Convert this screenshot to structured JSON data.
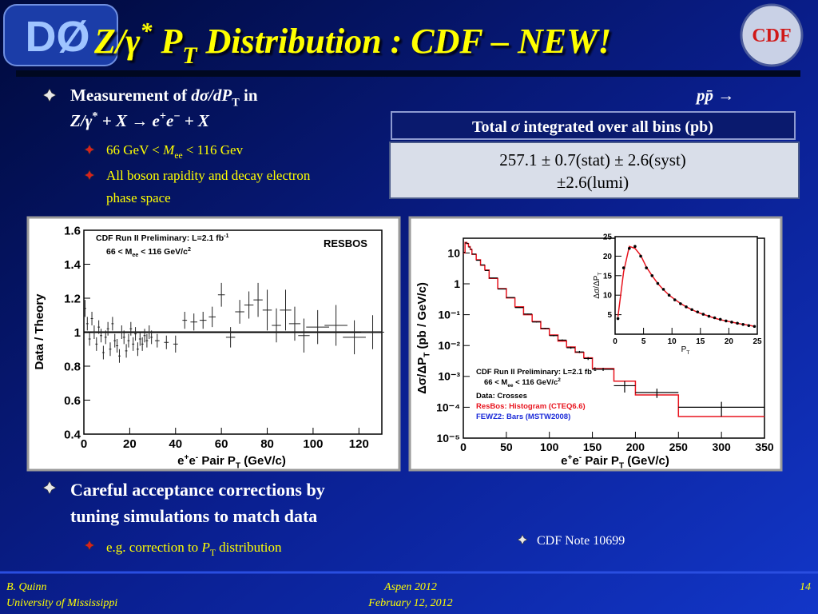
{
  "logos": {
    "left": "DØ",
    "right": "CDF"
  },
  "title": [
    {
      "t": "Z/γ"
    },
    {
      "sup": "*"
    },
    {
      "t": " P"
    },
    {
      "sub": "T"
    },
    {
      "t": " Distribution : CDF – NEW!"
    }
  ],
  "bullets": {
    "main1": {
      "line1": [
        {
          "t": "Measurement of  "
        },
        {
          "i": "dσ/dP"
        },
        {
          "sub": "T"
        },
        {
          "t": " in"
        }
      ],
      "line1_right": [
        {
          "i": "pp̄ →"
        }
      ],
      "line2": [
        {
          "i": "Z/γ"
        },
        {
          "sup": "*"
        },
        {
          "i": " + X → e"
        },
        {
          "sup": "+"
        },
        {
          "i": "e"
        },
        {
          "sup": "−"
        },
        {
          "i": " + X"
        }
      ],
      "sub1": [
        {
          "t": "66 GeV < "
        },
        {
          "i": "M"
        },
        {
          "sub": "ee"
        },
        {
          "t": " < 116 Gev"
        }
      ],
      "sub2": [
        "All boson rapidity and decay electron",
        "phase space"
      ]
    },
    "main2": {
      "lines": [
        "Careful acceptance corrections by",
        "tuning simulations to match data"
      ],
      "sub1": [
        {
          "t": "e.g. correction to "
        },
        {
          "i": "P"
        },
        {
          "sub": "T"
        },
        {
          "t": " distribution"
        }
      ]
    },
    "note": "CDF Note 10699"
  },
  "result_box": {
    "header": [
      {
        "t": "Total "
      },
      {
        "i": "σ"
      },
      {
        "t": " integrated over all bins (pb)"
      }
    ],
    "lines": [
      "257.1 ± 0.7(stat) ± 2.6(syst)",
      "±2.6(lumi)"
    ]
  },
  "left_plot": {
    "type": "scatter",
    "legend": [
      [
        {
          "t": "CDF Run II Preliminary: L=2.1 fb"
        },
        {
          "sup": "-1"
        }
      ],
      [
        {
          "t": "66 < M"
        },
        {
          "sub": "ee"
        },
        {
          "t": " < 116 GeV/c"
        },
        {
          "sup": "2"
        }
      ]
    ],
    "model": "RESBOS",
    "ylabel": [
      {
        "t": "Data / Theory"
      }
    ],
    "xlabel": [
      {
        "t": "e"
      },
      {
        "sup": "+"
      },
      {
        "t": "e"
      },
      {
        "sup": "-"
      },
      {
        "t": " Pair P"
      },
      {
        "sub": "T"
      },
      {
        "t": " (GeV/c)"
      }
    ],
    "xlim": [
      0,
      130
    ],
    "xticks": [
      0,
      20,
      40,
      60,
      80,
      100,
      120
    ],
    "ylim": [
      0.4,
      1.6
    ],
    "yticks": [
      0.4,
      0.6,
      0.8,
      1,
      1.2,
      1.4,
      1.6
    ],
    "reference_line": 1,
    "x": [
      0.5,
      1.5,
      2.5,
      3.5,
      4.5,
      5.5,
      6.5,
      7.5,
      8.5,
      9.5,
      10.5,
      11.5,
      12.5,
      13.5,
      14.5,
      15.5,
      16.5,
      17.5,
      18.5,
      19.5,
      20.5,
      21.5,
      22.5,
      23.5,
      24.5,
      25.5,
      26.5,
      27.5,
      28.5,
      29.5,
      32,
      36,
      40,
      44,
      48,
      52,
      56,
      60,
      64,
      68,
      72,
      76,
      80,
      84,
      88,
      92,
      96,
      102,
      110,
      118,
      126
    ],
    "y": [
      1.14,
      1.05,
      0.96,
      1.08,
      1.0,
      0.93,
      1.03,
      0.98,
      0.88,
      0.97,
      1.02,
      0.9,
      1.05,
      0.95,
      0.92,
      0.86,
      1.0,
      0.97,
      0.89,
      0.95,
      1.02,
      0.93,
      0.99,
      0.9,
      0.96,
      0.93,
      0.98,
      0.95,
      1.0,
      0.97,
      0.95,
      0.94,
      0.93,
      1.07,
      1.06,
      1.07,
      1.09,
      1.22,
      0.97,
      1.12,
      1.16,
      1.19,
      1.13,
      1.04,
      1.13,
      1.05,
      0.98,
      1.03,
      1.04,
      0.97,
      1.0
    ],
    "xerr": [
      0.5,
      0.5,
      0.5,
      0.5,
      0.5,
      0.5,
      0.5,
      0.5,
      0.5,
      0.5,
      0.5,
      0.5,
      0.5,
      0.5,
      0.5,
      0.5,
      0.5,
      0.5,
      0.5,
      0.5,
      0.5,
      0.5,
      0.5,
      0.5,
      0.5,
      0.5,
      0.5,
      0.5,
      0.5,
      0.5,
      1,
      1,
      1,
      1,
      1.5,
      1.5,
      1.5,
      1.5,
      2,
      2,
      2,
      2,
      2,
      2,
      2.5,
      2.5,
      2.5,
      5,
      5,
      5,
      5
    ],
    "yerr": [
      0.05,
      0.04,
      0.04,
      0.04,
      0.04,
      0.04,
      0.04,
      0.04,
      0.04,
      0.04,
      0.04,
      0.04,
      0.04,
      0.04,
      0.04,
      0.04,
      0.04,
      0.04,
      0.04,
      0.04,
      0.04,
      0.04,
      0.04,
      0.04,
      0.04,
      0.04,
      0.04,
      0.04,
      0.04,
      0.04,
      0.04,
      0.04,
      0.05,
      0.05,
      0.05,
      0.05,
      0.06,
      0.07,
      0.06,
      0.07,
      0.08,
      0.1,
      0.12,
      0.1,
      0.12,
      0.1,
      0.1,
      0.1,
      0.12,
      0.1,
      0.1
    ]
  },
  "right_plot": {
    "type": "histogram",
    "legend": [
      [
        {
          "t": "CDF Run II Preliminary: L=2.1 fb"
        },
        {
          "sup": "-1"
        }
      ],
      [
        {
          "t": "66 < M"
        },
        {
          "sub": "ee"
        },
        {
          "t": " < 116 GeV/c"
        },
        {
          "sup": "2"
        }
      ]
    ],
    "ylabel": [
      {
        "t": "Δσ/ΔP"
      },
      {
        "sub": "T"
      },
      {
        "t": "  (pb / GeV/c)"
      }
    ],
    "xlabel": [
      {
        "t": "e"
      },
      {
        "sup": "+"
      },
      {
        "t": "e"
      },
      {
        "sup": "-"
      },
      {
        "t": " Pair P"
      },
      {
        "sub": "T"
      },
      {
        "t": " (GeV/c)"
      }
    ],
    "xlim": [
      0,
      350
    ],
    "xticks": [
      0,
      50,
      100,
      150,
      200,
      250,
      300,
      350
    ],
    "log_y": true,
    "ylim": [
      1e-05,
      30
    ],
    "yticks": [
      {
        "value": 1e-05,
        "label": "10⁻⁵"
      },
      {
        "value": 0.0001,
        "label": "10⁻⁴"
      },
      {
        "value": 0.001,
        "label": "10⁻³"
      },
      {
        "value": 0.01,
        "label": "10⁻²"
      },
      {
        "value": 0.1,
        "label": "10⁻¹"
      },
      1,
      10
    ],
    "bins": [
      0,
      2,
      4,
      6,
      8,
      10,
      15,
      20,
      25,
      30,
      40,
      50,
      60,
      70,
      80,
      90,
      100,
      110,
      120,
      130,
      140,
      150,
      175,
      200,
      250,
      350
    ],
    "series": [
      {
        "name": "Data: Crosses",
        "color": "#000000",
        "x": [
          1,
          3,
          5,
          7,
          9,
          12.5,
          17.5,
          22.5,
          27.5,
          35,
          45,
          55,
          65,
          75,
          85,
          95,
          105,
          115,
          125,
          135,
          145,
          162.5,
          187.5,
          225,
          300
        ],
        "values": [
          10.5,
          21,
          20.5,
          15.5,
          13.2,
          9.2,
          5.8,
          4.1,
          2.7,
          1.55,
          0.68,
          0.36,
          0.17,
          0.105,
          0.058,
          0.036,
          0.021,
          0.015,
          0.0085,
          0.0062,
          0.0038,
          0.0017,
          0.0005,
          0.0003,
          0.0001
        ],
        "yerr": [
          0.2,
          0.3,
          0.3,
          0.2,
          0.2,
          0.1,
          0.08,
          0.06,
          0.04,
          0.02,
          0.01,
          0.006,
          0.004,
          0.003,
          0.002,
          0.0015,
          0.001,
          0.0008,
          0.0006,
          0.0005,
          0.0004,
          0.0002,
          0.0002,
          0.0001,
          5e-05
        ]
      },
      {
        "name": "ResBos: Histogram (CTEQ6.6)",
        "color": "#e8141e",
        "values": [
          10,
          22,
          20,
          16,
          13,
          9,
          6,
          4,
          2.8,
          1.5,
          0.7,
          0.35,
          0.18,
          0.1,
          0.06,
          0.035,
          0.022,
          0.014,
          0.009,
          0.006,
          0.004,
          0.0018,
          0.0007,
          0.00025,
          5e-05
        ]
      },
      {
        "name": "FEWZ2: Bars (MSTW2008)",
        "color": "#1a2ad8"
      }
    ],
    "inset": {
      "ylabel": [
        {
          "t": "Δσ/ΔP"
        },
        {
          "sub": "T"
        }
      ],
      "xlabel": [
        {
          "t": "P"
        },
        {
          "sub": "T"
        }
      ],
      "xlim": [
        0,
        25
      ],
      "xticks": [
        0,
        5,
        10,
        15,
        20,
        25
      ],
      "ylim": [
        0,
        25
      ],
      "yticks": [
        5,
        10,
        15,
        20,
        25
      ],
      "x": [
        0.5,
        1.5,
        2.5,
        3.5,
        4.5,
        5.5,
        6.5,
        7.5,
        8.5,
        9.5,
        10.5,
        11.5,
        12.5,
        13.5,
        14.5,
        15.5,
        16.5,
        17.5,
        18.5,
        19.5,
        20.5,
        21.5,
        22.5,
        23.5,
        24.5
      ],
      "data": [
        4,
        17,
        22,
        22.5,
        20,
        17,
        15,
        13,
        11.5,
        10,
        8.8,
        7.8,
        7,
        6.3,
        5.7,
        5.1,
        4.6,
        4.2,
        3.8,
        3.4,
        3.1,
        2.8,
        2.5,
        2.2,
        2.0
      ],
      "resbos": [
        4.5,
        16,
        22.5,
        22,
        20.2,
        17.2,
        15,
        13,
        11.4,
        10,
        8.9,
        7.9,
        7.0,
        6.3,
        5.6,
        5.1,
        4.6,
        4.1,
        3.7,
        3.4,
        3.1,
        2.8,
        2.5,
        2.3,
        2.0
      ]
    }
  },
  "footer": {
    "left": [
      "B. Quinn",
      "University of Mississippi"
    ],
    "center": [
      "Aspen 2012",
      "February 12, 2012"
    ],
    "right": "14"
  }
}
